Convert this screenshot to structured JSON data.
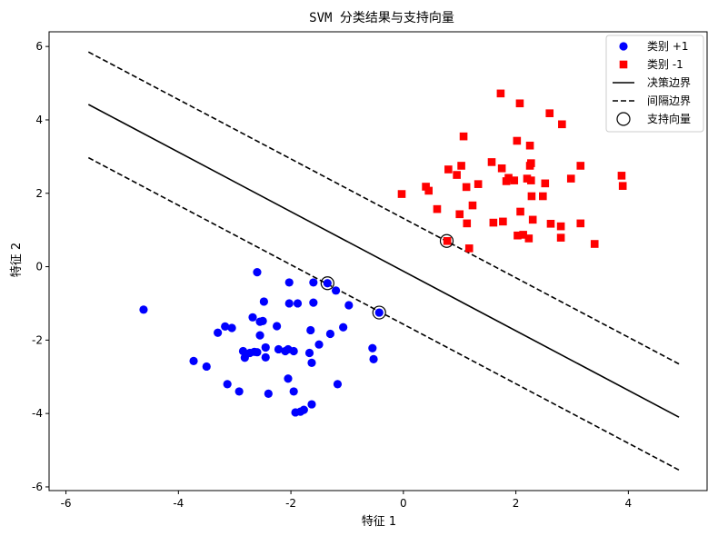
{
  "chart_data": {
    "type": "scatter",
    "title": "SVM 分类结果与支持向量",
    "xlabel": "特征 1",
    "ylabel": "特征 2",
    "xlim": [
      -6.3,
      5.4
    ],
    "ylim": [
      -6.1,
      6.4
    ],
    "xticks": [
      -6,
      -4,
      -2,
      0,
      2,
      4
    ],
    "yticks": [
      -6,
      -4,
      -2,
      0,
      2,
      4,
      6
    ],
    "grid": false,
    "legend_position": "top-right",
    "series": [
      {
        "name": "类别 +1",
        "marker": "circle",
        "color": "#0000ff",
        "points": [
          [
            -4.62,
            -1.17
          ],
          [
            -2.6,
            -0.15
          ],
          [
            -2.03,
            -0.43
          ],
          [
            -1.6,
            -0.43
          ],
          [
            -1.35,
            -0.45
          ],
          [
            -1.2,
            -0.65
          ],
          [
            -2.48,
            -0.95
          ],
          [
            -2.03,
            -1.0
          ],
          [
            -1.88,
            -1.0
          ],
          [
            -1.6,
            -0.98
          ],
          [
            -0.97,
            -1.05
          ],
          [
            -0.43,
            -1.25
          ],
          [
            -2.68,
            -1.38
          ],
          [
            -2.5,
            -1.48
          ],
          [
            -2.55,
            -1.5
          ],
          [
            -3.17,
            -1.63
          ],
          [
            -3.05,
            -1.67
          ],
          [
            -2.25,
            -1.62
          ],
          [
            -1.07,
            -1.65
          ],
          [
            -1.65,
            -1.73
          ],
          [
            -3.3,
            -1.8
          ],
          [
            -2.55,
            -1.87
          ],
          [
            -1.3,
            -1.83
          ],
          [
            -1.5,
            -2.12
          ],
          [
            -0.55,
            -2.22
          ],
          [
            -2.45,
            -2.2
          ],
          [
            -2.22,
            -2.25
          ],
          [
            -2.05,
            -2.25
          ],
          [
            -1.95,
            -2.3
          ],
          [
            -2.1,
            -2.3
          ],
          [
            -2.65,
            -2.32
          ],
          [
            -2.6,
            -2.33
          ],
          [
            -2.85,
            -2.3
          ],
          [
            -2.73,
            -2.35
          ],
          [
            -1.67,
            -2.35
          ],
          [
            -2.82,
            -2.48
          ],
          [
            -2.45,
            -2.47
          ],
          [
            -3.73,
            -2.57
          ],
          [
            -1.63,
            -2.62
          ],
          [
            -0.53,
            -2.52
          ],
          [
            -3.5,
            -2.72
          ],
          [
            -2.05,
            -3.05
          ],
          [
            -3.13,
            -3.2
          ],
          [
            -1.17,
            -3.2
          ],
          [
            -2.92,
            -3.4
          ],
          [
            -2.4,
            -3.46
          ],
          [
            -1.95,
            -3.4
          ],
          [
            -1.63,
            -3.75
          ],
          [
            -1.77,
            -3.9
          ],
          [
            -1.83,
            -3.95
          ],
          [
            -1.92,
            -3.97
          ]
        ]
      },
      {
        "name": "类别 -1",
        "marker": "square",
        "color": "#ff0000",
        "points": [
          [
            1.73,
            4.72
          ],
          [
            2.07,
            4.45
          ],
          [
            2.6,
            4.18
          ],
          [
            2.82,
            3.88
          ],
          [
            1.07,
            3.55
          ],
          [
            2.02,
            3.43
          ],
          [
            2.25,
            3.3
          ],
          [
            1.57,
            2.85
          ],
          [
            2.27,
            2.82
          ],
          [
            2.25,
            2.75
          ],
          [
            3.15,
            2.75
          ],
          [
            1.03,
            2.75
          ],
          [
            0.8,
            2.65
          ],
          [
            1.75,
            2.68
          ],
          [
            0.95,
            2.5
          ],
          [
            3.88,
            2.48
          ],
          [
            1.87,
            2.42
          ],
          [
            2.2,
            2.4
          ],
          [
            2.27,
            2.35
          ],
          [
            1.83,
            2.33
          ],
          [
            1.97,
            2.35
          ],
          [
            2.98,
            2.4
          ],
          [
            1.33,
            2.25
          ],
          [
            0.4,
            2.18
          ],
          [
            1.12,
            2.17
          ],
          [
            0.45,
            2.07
          ],
          [
            2.52,
            2.27
          ],
          [
            3.9,
            2.2
          ],
          [
            -0.03,
            1.98
          ],
          [
            2.28,
            1.92
          ],
          [
            2.48,
            1.92
          ],
          [
            1.23,
            1.67
          ],
          [
            0.6,
            1.57
          ],
          [
            2.08,
            1.5
          ],
          [
            1.0,
            1.43
          ],
          [
            2.3,
            1.28
          ],
          [
            1.77,
            1.23
          ],
          [
            1.6,
            1.2
          ],
          [
            1.13,
            1.18
          ],
          [
            2.62,
            1.17
          ],
          [
            3.15,
            1.18
          ],
          [
            2.8,
            1.1
          ],
          [
            2.03,
            0.85
          ],
          [
            2.13,
            0.87
          ],
          [
            2.23,
            0.77
          ],
          [
            2.8,
            0.79
          ],
          [
            0.78,
            0.7
          ],
          [
            3.4,
            0.62
          ],
          [
            1.17,
            0.5
          ]
        ]
      }
    ],
    "support_vectors": {
      "name": "支持向量",
      "points": [
        [
          -1.35,
          -0.45
        ],
        [
          -0.43,
          -1.25
        ],
        [
          0.77,
          0.7
        ]
      ]
    },
    "lines": [
      {
        "name": "决策边界",
        "style": "solid",
        "x": [
          -5.6,
          4.9
        ],
        "y": [
          4.42,
          -4.1
        ]
      },
      {
        "name": "间隔边界",
        "style": "dashed",
        "x": [
          -5.6,
          4.9
        ],
        "y": [
          5.85,
          -2.65
        ]
      },
      {
        "name": "",
        "style": "dashed",
        "x": [
          -5.6,
          4.9
        ],
        "y": [
          2.97,
          -5.54
        ]
      }
    ]
  }
}
